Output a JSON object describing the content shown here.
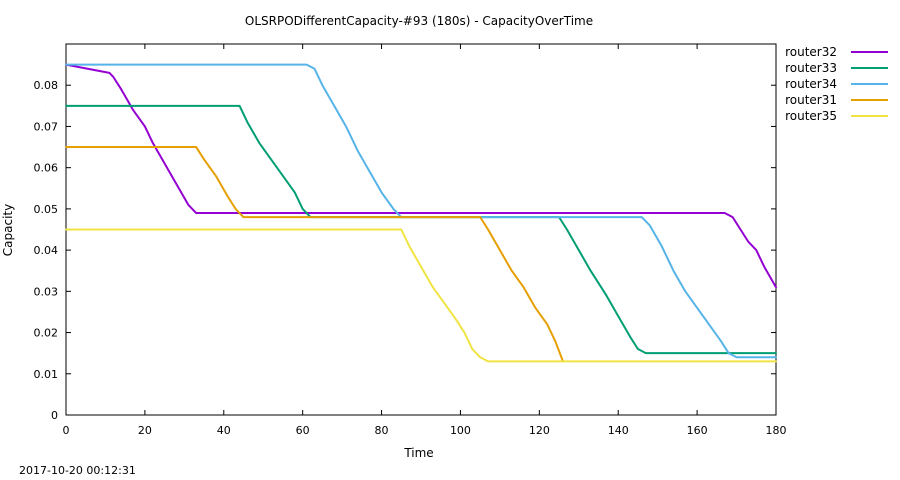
{
  "chart_data": {
    "type": "line",
    "title": "OLSRPODifferentCapacity-#93 (180s) - CapacityOverTime",
    "xlabel": "Time",
    "ylabel": "Capacity",
    "xlim": [
      0,
      180
    ],
    "ylim": [
      0,
      0.09
    ],
    "x_ticks": [
      0,
      20,
      40,
      60,
      80,
      100,
      120,
      140,
      160,
      180
    ],
    "y_ticks": [
      0,
      0.01,
      0.02,
      0.03,
      0.04,
      0.05,
      0.06,
      0.07,
      0.08
    ],
    "x_tick_labels": [
      "0",
      "20",
      "40",
      "60",
      "80",
      "100",
      "120",
      "140",
      "160",
      "180"
    ],
    "y_tick_labels": [
      "0",
      "0.01",
      "0.02",
      "0.03",
      "0.04",
      "0.05",
      "0.06",
      "0.07",
      "0.08"
    ],
    "grid": false,
    "legend_position": "outside-top-right",
    "footer": "2017-10-20 00:12:31",
    "series": [
      {
        "name": "router32",
        "color": "#9400d3",
        "points": [
          [
            0,
            0.085
          ],
          [
            11,
            0.083
          ],
          [
            12,
            0.082
          ],
          [
            14,
            0.079
          ],
          [
            17,
            0.074
          ],
          [
            20,
            0.07
          ],
          [
            22,
            0.066
          ],
          [
            25,
            0.061
          ],
          [
            28,
            0.056
          ],
          [
            31,
            0.051
          ],
          [
            33,
            0.049
          ],
          [
            40,
            0.049
          ],
          [
            60,
            0.049
          ],
          [
            100,
            0.049
          ],
          [
            140,
            0.049
          ],
          [
            167,
            0.049
          ],
          [
            169,
            0.048
          ],
          [
            171,
            0.045
          ],
          [
            173,
            0.042
          ],
          [
            175,
            0.04
          ],
          [
            177,
            0.036
          ],
          [
            180,
            0.031
          ]
        ]
      },
      {
        "name": "router33",
        "color": "#009e73",
        "points": [
          [
            0,
            0.075
          ],
          [
            44,
            0.075
          ],
          [
            46,
            0.071
          ],
          [
            49,
            0.066
          ],
          [
            52,
            0.062
          ],
          [
            55,
            0.058
          ],
          [
            58,
            0.054
          ],
          [
            60,
            0.05
          ],
          [
            62,
            0.048
          ],
          [
            100,
            0.048
          ],
          [
            125,
            0.048
          ],
          [
            127,
            0.045
          ],
          [
            130,
            0.04
          ],
          [
            133,
            0.035
          ],
          [
            137,
            0.029
          ],
          [
            140,
            0.024
          ],
          [
            143,
            0.019
          ],
          [
            145,
            0.016
          ],
          [
            147,
            0.015
          ],
          [
            180,
            0.015
          ]
        ]
      },
      {
        "name": "router34",
        "color": "#56b4e9",
        "points": [
          [
            0,
            0.085
          ],
          [
            61,
            0.085
          ],
          [
            63,
            0.084
          ],
          [
            65,
            0.08
          ],
          [
            68,
            0.075
          ],
          [
            71,
            0.07
          ],
          [
            74,
            0.064
          ],
          [
            77,
            0.059
          ],
          [
            80,
            0.054
          ],
          [
            83,
            0.05
          ],
          [
            85,
            0.048
          ],
          [
            100,
            0.048
          ],
          [
            146,
            0.048
          ],
          [
            148,
            0.046
          ],
          [
            151,
            0.041
          ],
          [
            154,
            0.035
          ],
          [
            157,
            0.03
          ],
          [
            160,
            0.026
          ],
          [
            163,
            0.022
          ],
          [
            166,
            0.018
          ],
          [
            168,
            0.015
          ],
          [
            170,
            0.014
          ],
          [
            180,
            0.014
          ]
        ]
      },
      {
        "name": "router31",
        "color": "#e69f00",
        "points": [
          [
            0,
            0.065
          ],
          [
            33,
            0.065
          ],
          [
            35,
            0.062
          ],
          [
            38,
            0.058
          ],
          [
            41,
            0.053
          ],
          [
            43,
            0.05
          ],
          [
            45,
            0.048
          ],
          [
            60,
            0.048
          ],
          [
            80,
            0.048
          ],
          [
            105,
            0.048
          ],
          [
            107,
            0.045
          ],
          [
            110,
            0.04
          ],
          [
            113,
            0.035
          ],
          [
            116,
            0.031
          ],
          [
            119,
            0.026
          ],
          [
            122,
            0.022
          ],
          [
            124,
            0.018
          ],
          [
            126,
            0.013
          ]
        ]
      },
      {
        "name": "router35",
        "color": "#f0e442",
        "points": [
          [
            0,
            0.045
          ],
          [
            85,
            0.045
          ],
          [
            87,
            0.041
          ],
          [
            90,
            0.036
          ],
          [
            93,
            0.031
          ],
          [
            96,
            0.027
          ],
          [
            99,
            0.023
          ],
          [
            101,
            0.02
          ],
          [
            103,
            0.016
          ],
          [
            105,
            0.014
          ],
          [
            107,
            0.013
          ],
          [
            180,
            0.013
          ]
        ]
      }
    ]
  }
}
